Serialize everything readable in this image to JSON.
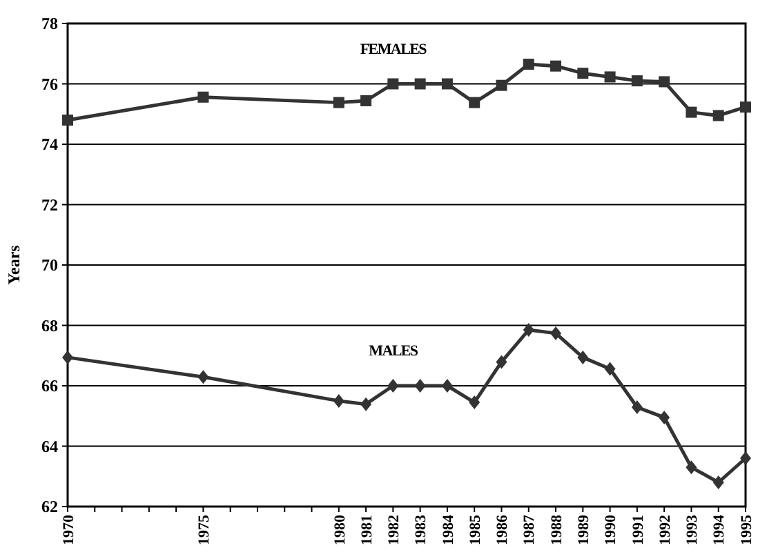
{
  "chart_data": {
    "type": "line",
    "ylabel": "Years",
    "x": [
      1970,
      1975,
      1980,
      1981,
      1982,
      1983,
      1984,
      1985,
      1986,
      1987,
      1988,
      1989,
      1990,
      1991,
      1992,
      1993,
      1994,
      1995
    ],
    "series": [
      {
        "name": "FEMALES",
        "color": "#333333",
        "marker": "square",
        "values": [
          74.8,
          75.56,
          75.38,
          75.44,
          76,
          76,
          76,
          75.38,
          75.95,
          76.65,
          76.59,
          76.35,
          76.23,
          76.1,
          76.07,
          75.06,
          74.95,
          75.23
        ]
      },
      {
        "name": "MALES",
        "color": "#333333",
        "marker": "diamond",
        "values": [
          66.94,
          66.29,
          65.5,
          65.39,
          66,
          66,
          66,
          65.45,
          66.79,
          67.85,
          67.74,
          66.94,
          66.56,
          65.29,
          64.95,
          63.3,
          62.8,
          63.6
        ]
      }
    ],
    "xlim": [
      1970,
      1995
    ],
    "xticks": [
      1970,
      {
        "value": 1971,
        "label": null
      },
      {
        "value": 1972,
        "label": null
      },
      {
        "value": 1973,
        "label": null
      },
      {
        "value": 1974,
        "label": null
      },
      1975,
      {
        "value": 1976,
        "label": null
      },
      {
        "value": 1977,
        "label": null
      },
      {
        "value": 1978,
        "label": null
      },
      {
        "value": 1979,
        "label": null
      },
      1980,
      1981,
      1982,
      1983,
      1984,
      1985,
      1986,
      1987,
      1988,
      1989,
      1990,
      1991,
      1992,
      1993,
      1994,
      1995
    ],
    "ylim": [
      62,
      78
    ],
    "yticks": [
      62,
      64,
      66,
      68,
      70,
      72,
      74,
      76,
      78
    ],
    "grid": "y",
    "line_style": "solid"
  }
}
